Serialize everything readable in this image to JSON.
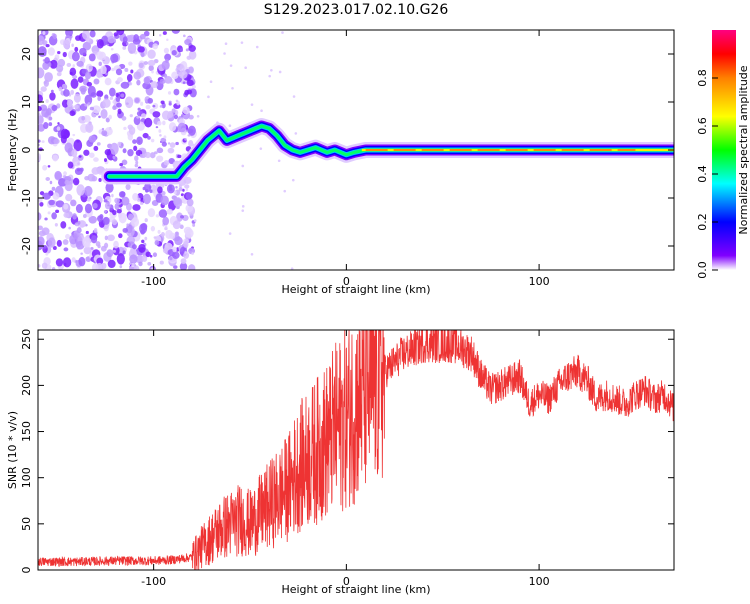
{
  "title": "S129.2023.017.02.10.G26",
  "chart_data": [
    {
      "type": "heatmap",
      "xlabel": "Height of straight line (km)",
      "ylabel": "Frequency (Hz)",
      "xlim": [
        -160,
        170
      ],
      "ylim": [
        -25,
        25
      ],
      "xticks": [
        -100,
        0,
        100
      ],
      "yticks": [
        -20,
        -10,
        0,
        10,
        20
      ],
      "colorbar": {
        "label": "Normalized spectral amplitude",
        "range": [
          0.0,
          1.0
        ],
        "ticks": [
          0.0,
          0.2,
          0.4,
          0.6,
          0.8
        ],
        "colors": [
          "#ffffff",
          "#8000ff",
          "#0000ff",
          "#00ffff",
          "#00ff00",
          "#ffff00",
          "#ff8000",
          "#ff0000",
          "#ff0080"
        ]
      },
      "ridge": {
        "x": [
          -123,
          -110,
          -100,
          -92,
          -88,
          -84,
          -80,
          -76,
          -72,
          -66,
          -62,
          -56,
          -50,
          -44,
          -40,
          -36,
          -32,
          -28,
          -24,
          -20,
          -16,
          -10,
          -6,
          0,
          4,
          10,
          40,
          80,
          120,
          170
        ],
        "y": [
          -5.5,
          -5.5,
          -5.5,
          -5.5,
          -5.5,
          -3.5,
          -2,
          0,
          2,
          4,
          2,
          3,
          4,
          5,
          4.5,
          3,
          1,
          0,
          -0.5,
          0,
          0.5,
          -0.5,
          0,
          -1,
          -0.5,
          0,
          0,
          0,
          0,
          0
        ]
      },
      "noise_region_x": [
        -160,
        -85
      ]
    },
    {
      "type": "line",
      "xlabel": "Height of straight line (km)",
      "ylabel": "SNR (10 * v/v)",
      "xlim": [
        -160,
        170
      ],
      "ylim": [
        0,
        260
      ],
      "xticks": [
        -100,
        0,
        100
      ],
      "yticks": [
        0,
        50,
        100,
        150,
        200,
        250
      ],
      "color": "#ee3333",
      "envelope": {
        "x": [
          -160,
          -140,
          -120,
          -100,
          -90,
          -80,
          -75,
          -70,
          -65,
          -60,
          -55,
          -50,
          -45,
          -40,
          -35,
          -30,
          -25,
          -20,
          -15,
          -10,
          -5,
          0,
          5,
          10,
          15,
          20,
          25,
          30,
          35,
          40,
          45,
          50,
          55,
          60,
          65,
          70,
          75,
          80,
          85,
          90,
          95,
          100,
          105,
          110,
          115,
          120,
          125,
          130,
          135,
          140,
          145,
          150,
          155,
          160,
          165,
          170
        ],
        "y": [
          9,
          9,
          10,
          10,
          11,
          14,
          25,
          35,
          45,
          50,
          55,
          50,
          60,
          70,
          80,
          90,
          110,
          120,
          130,
          140,
          155,
          165,
          180,
          195,
          205,
          215,
          225,
          235,
          240,
          245,
          245,
          245,
          245,
          240,
          235,
          210,
          195,
          200,
          205,
          210,
          180,
          190,
          185,
          200,
          210,
          215,
          205,
          185,
          190,
          185,
          180,
          190,
          195,
          185,
          190,
          175
        ]
      }
    }
  ]
}
